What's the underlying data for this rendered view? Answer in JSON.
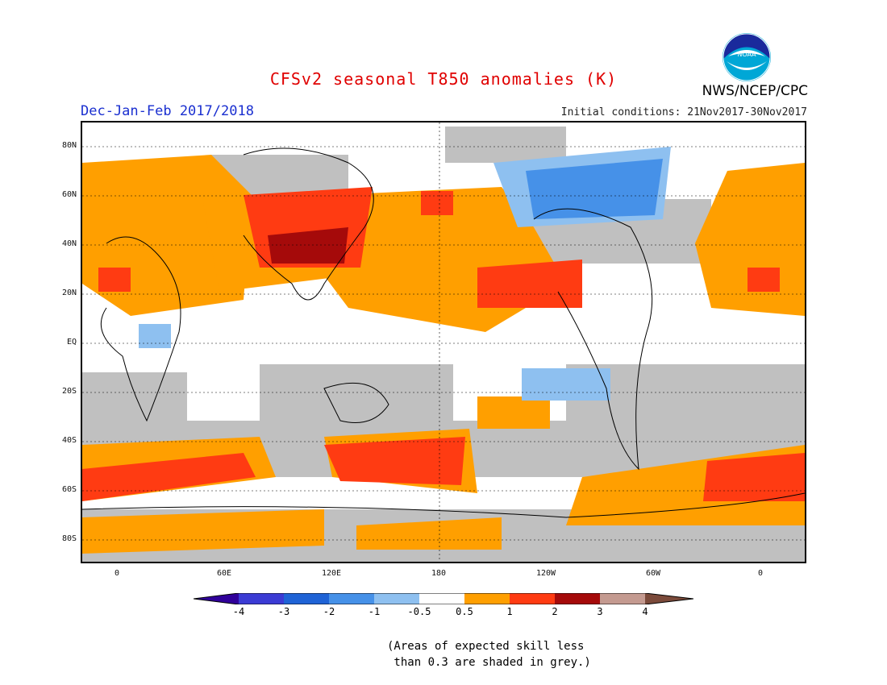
{
  "header": {
    "title": "CFSv2 seasonal T850 anomalies (K)",
    "season": "Dec-Jan-Feb 2017/2018",
    "initial_conditions": "Initial conditions: 21Nov2017-30Nov2017",
    "agency": "NWS/NCEP/CPC",
    "logo_text": "NOAA"
  },
  "colors": {
    "title": "#e00000",
    "season": "#1a2fd0",
    "skill_grey": "#c0c0c0",
    "land_outline": "#000000"
  },
  "axes": {
    "lat_labels": [
      "80N",
      "60N",
      "40N",
      "20N",
      "EQ",
      "20S",
      "40S",
      "60S",
      "80S"
    ],
    "lon_labels": [
      "0",
      "60E",
      "120E",
      "180",
      "120W",
      "60W",
      "0"
    ]
  },
  "colorbar": {
    "bins": [
      {
        "color": "#30009a"
      },
      {
        "color": "#3b3bd4"
      },
      {
        "color": "#1f63d6"
      },
      {
        "color": "#4691e8"
      },
      {
        "color": "#8ec0f0"
      },
      {
        "color": "#ffffff"
      },
      {
        "color": "#ff9f00"
      },
      {
        "color": "#ff3b12"
      },
      {
        "color": "#a50a0a"
      },
      {
        "color": "#c49a90"
      },
      {
        "color": "#7b4a3a"
      }
    ],
    "tick_labels": [
      "-4",
      "-3",
      "-2",
      "-1",
      "-0.5",
      "0.5",
      "1",
      "2",
      "3",
      "4"
    ]
  },
  "note": "(Areas of expected skill less\n than 0.3 are shaded in grey.)"
}
